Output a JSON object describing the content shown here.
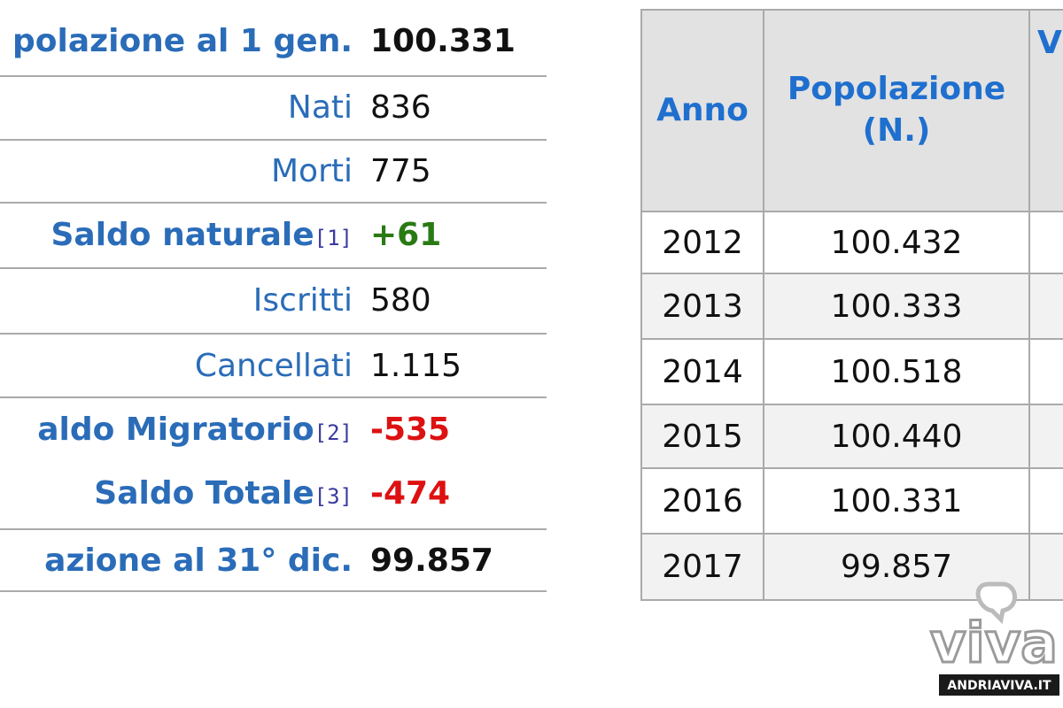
{
  "left_table": {
    "rows": [
      {
        "label": "polazione al 1 gen.",
        "value": "100.331",
        "style": "bold"
      },
      {
        "label": "Nati",
        "value": "836",
        "style": "plain"
      },
      {
        "label": "Morti",
        "value": "775",
        "style": "plain"
      },
      {
        "label": "Saldo naturale",
        "note": "[1]",
        "value": "+61",
        "style": "positive"
      },
      {
        "label": "Iscritti",
        "value": "580",
        "style": "plain"
      },
      {
        "label": "Cancellati",
        "value": "1.115",
        "style": "plain"
      },
      {
        "label": "aldo Migratorio",
        "note": "[2]",
        "value": "-535",
        "style": "negative"
      },
      {
        "label": "Saldo Totale",
        "note": "[3]",
        "value": "-474",
        "style": "negative"
      },
      {
        "label": "azione al 31° dic.",
        "value": "99.857",
        "style": "bold"
      }
    ]
  },
  "right_table": {
    "header": [
      "Anno",
      "Popolazione (N.)",
      "V"
    ],
    "rows": [
      [
        "2012",
        "100.432"
      ],
      [
        "2013",
        "100.333"
      ],
      [
        "2014",
        "100.518"
      ],
      [
        "2015",
        "100.440"
      ],
      [
        "2016",
        "100.331"
      ],
      [
        "2017",
        "99.857"
      ]
    ]
  },
  "watermark": {
    "logo": "viva",
    "site": "ANDRIAVIVA.IT"
  }
}
